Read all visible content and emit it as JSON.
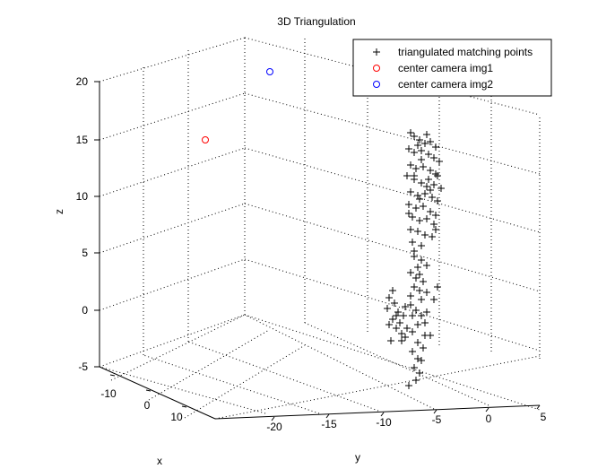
{
  "chart_data": {
    "type": "scatter",
    "title": "3D Triangulation",
    "xlabel": "x",
    "ylabel": "y",
    "zlabel": "z",
    "x_ticks": [
      "-10",
      "0",
      "10"
    ],
    "y_ticks": [
      "-20",
      "-15",
      "-10",
      "-5",
      "0",
      "5"
    ],
    "z_ticks": [
      "20",
      "15",
      "10",
      "5",
      "0",
      "-5"
    ],
    "grid": true,
    "legend_position": "top-right",
    "legend": [
      {
        "label": "triangulated matching points",
        "marker": "+",
        "color": "#000000"
      },
      {
        "label": "center camera img1",
        "marker": "o",
        "color": "#ff0000"
      },
      {
        "label": "center camera img2",
        "marker": "o",
        "color": "#0000ff"
      }
    ],
    "series": [
      {
        "name": "triangulated matching points",
        "marker": "+",
        "color": "#000000",
        "points": [
          [
            458,
            148
          ],
          [
            462,
            152
          ],
          [
            468,
            156
          ],
          [
            474,
            160
          ],
          [
            480,
            158
          ],
          [
            486,
            164
          ],
          [
            456,
            166
          ],
          [
            462,
            170
          ],
          [
            470,
            168
          ],
          [
            478,
            172
          ],
          [
            484,
            176
          ],
          [
            490,
            180
          ],
          [
            458,
            184
          ],
          [
            464,
            188
          ],
          [
            472,
            186
          ],
          [
            480,
            190
          ],
          [
            486,
            194
          ],
          [
            454,
            196
          ],
          [
            462,
            200
          ],
          [
            470,
            204
          ],
          [
            478,
            200
          ],
          [
            484,
            206
          ],
          [
            492,
            210
          ],
          [
            458,
            214
          ],
          [
            466,
            218
          ],
          [
            474,
            216
          ],
          [
            482,
            220
          ],
          [
            488,
            224
          ],
          [
            456,
            228
          ],
          [
            464,
            232
          ],
          [
            472,
            230
          ],
          [
            480,
            236
          ],
          [
            486,
            240
          ],
          [
            460,
            242
          ],
          [
            468,
            246
          ],
          [
            476,
            244
          ],
          [
            484,
            250
          ],
          [
            458,
            256
          ],
          [
            466,
            258
          ],
          [
            474,
            262
          ],
          [
            482,
            264
          ],
          [
            460,
            270
          ],
          [
            470,
            274
          ],
          [
            462,
            286
          ],
          [
            470,
            290
          ],
          [
            466,
            298
          ],
          [
            458,
            304
          ],
          [
            464,
            310
          ],
          [
            472,
            314
          ],
          [
            462,
            320
          ],
          [
            468,
            324
          ],
          [
            476,
            326
          ],
          [
            458,
            330
          ],
          [
            488,
            320
          ],
          [
            470,
            334
          ],
          [
            438,
            324
          ],
          [
            434,
            332
          ],
          [
            440,
            338
          ],
          [
            432,
            344
          ],
          [
            444,
            348
          ],
          [
            438,
            356
          ],
          [
            446,
            360
          ],
          [
            450,
            352
          ],
          [
            454,
            366
          ],
          [
            460,
            370
          ],
          [
            434,
            362
          ],
          [
            442,
            366
          ],
          [
            448,
            372
          ],
          [
            436,
            380
          ],
          [
            452,
            376
          ],
          [
            466,
            382
          ],
          [
            472,
            388
          ],
          [
            460,
            392
          ],
          [
            466,
            400
          ],
          [
            462,
            410
          ],
          [
            468,
            416
          ],
          [
            464,
            424
          ],
          [
            456,
            430
          ],
          [
            458,
            340
          ],
          [
            464,
            346
          ],
          [
            470,
            352
          ],
          [
            474,
            360
          ],
          [
            466,
            362
          ],
          [
            480,
            374
          ],
          [
            476,
            348
          ],
          [
            484,
            334
          ],
          [
            460,
            352
          ],
          [
            452,
            342
          ],
          [
            442,
            352
          ],
          [
            448,
            380
          ],
          [
            470,
            402
          ],
          [
            474,
            374
          ],
          [
            462,
            196
          ],
          [
            476,
            208
          ],
          [
            468,
            222
          ],
          [
            480,
            212
          ],
          [
            470,
            178
          ],
          [
            466,
            162
          ],
          [
            476,
            150
          ],
          [
            488,
            196
          ],
          [
            456,
            238
          ],
          [
            486,
            256
          ],
          [
            462,
            280
          ],
          [
            476,
            296
          ],
          [
            468,
            306
          ]
        ]
      },
      {
        "name": "center camera img1",
        "marker": "o",
        "color": "#ff0000",
        "points": [
          [
            229,
            156
          ]
        ]
      },
      {
        "name": "center camera img2",
        "marker": "o",
        "color": "#0000ff",
        "points": [
          [
            301,
            80
          ]
        ]
      }
    ]
  }
}
